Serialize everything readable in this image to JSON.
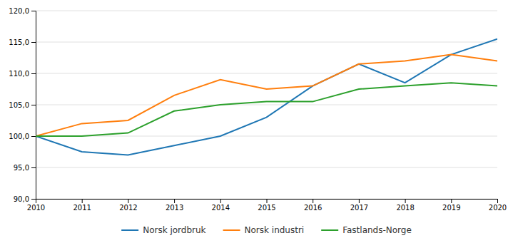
{
  "chart_data": {
    "type": "line",
    "x": [
      2010,
      2011,
      2012,
      2013,
      2014,
      2015,
      2016,
      2017,
      2018,
      2019,
      2020
    ],
    "series": [
      {
        "name": "Norsk jordbruk",
        "values": [
          100.0,
          97.5,
          97.0,
          98.5,
          100.0,
          103.0,
          108.0,
          111.5,
          108.5,
          113.0,
          115.5
        ]
      },
      {
        "name": "Norsk industri",
        "values": [
          100.0,
          102.0,
          102.5,
          106.5,
          109.0,
          107.5,
          108.0,
          111.5,
          112.0,
          113.0,
          112.0
        ]
      },
      {
        "name": "Fastlands-Norge",
        "values": [
          100.0,
          100.0,
          100.5,
          104.0,
          105.0,
          105.5,
          105.5,
          107.5,
          108.0,
          108.5,
          108.0
        ]
      }
    ],
    "xlim": [
      2010,
      2020
    ],
    "xticks": [
      2010,
      2011,
      2012,
      2013,
      2014,
      2015,
      2016,
      2017,
      2018,
      2019,
      2020
    ],
    "ylim": [
      90.0,
      120.0
    ],
    "yticks": [
      {
        "value": 90.0,
        "label": "90,0"
      },
      {
        "value": 95.0,
        "label": "95,0"
      },
      {
        "value": 100.0,
        "label": "100,0"
      },
      {
        "value": 105.0,
        "label": "105,0"
      },
      {
        "value": 110.0,
        "label": "110,0"
      },
      {
        "value": 115.0,
        "label": "115,0"
      },
      {
        "value": 120.0,
        "label": "120,0"
      }
    ],
    "grid": "y",
    "legend": "bottom"
  }
}
